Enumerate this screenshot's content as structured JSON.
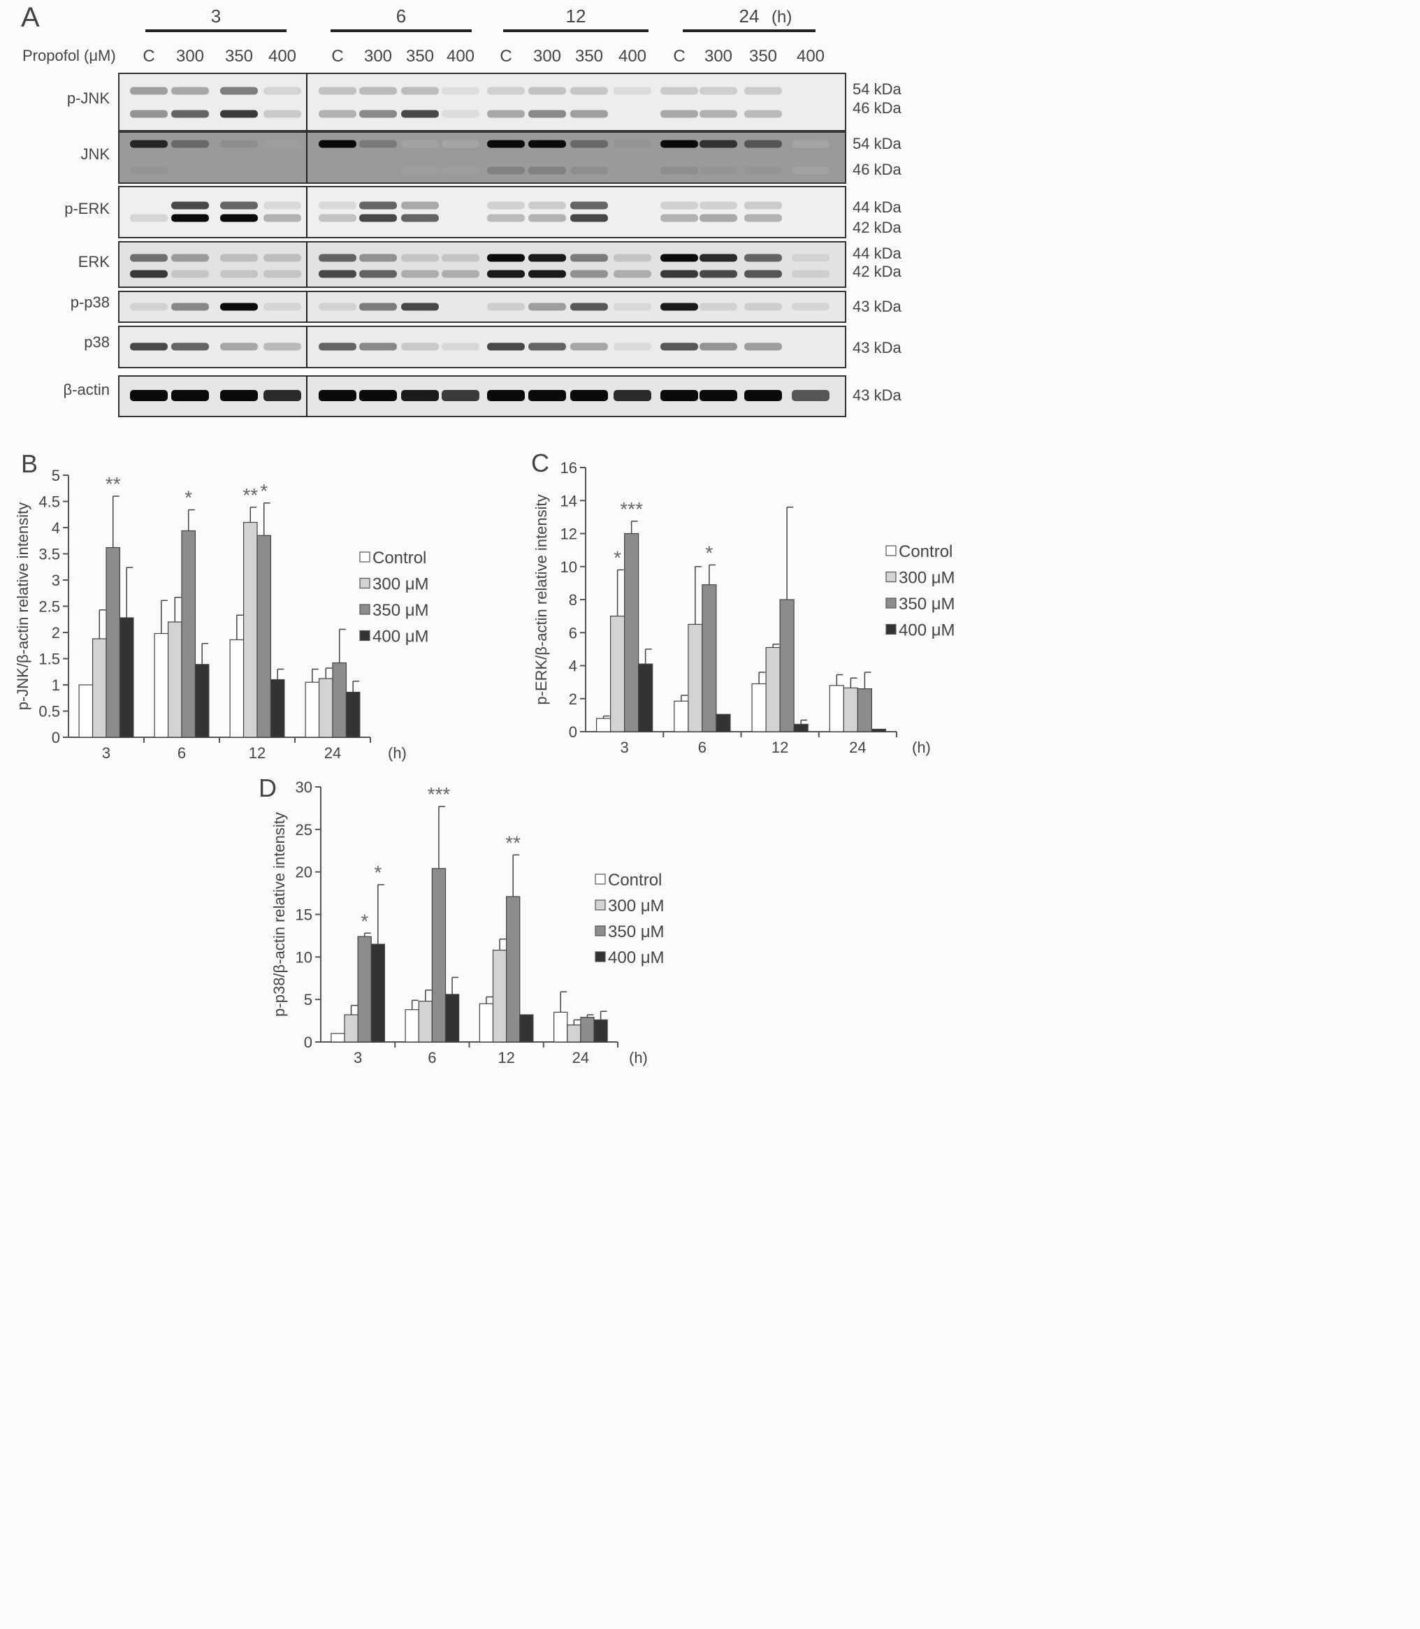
{
  "blot": {
    "panel_label": "A",
    "time_unit": "(h)",
    "timepoints": [
      "3",
      "6",
      "12",
      "24"
    ],
    "treatment_label": "Propofol (μM)",
    "lanes": [
      "C",
      "300",
      "350",
      "400"
    ],
    "rows": [
      {
        "name": "p-JNK",
        "sizes": [
          "54 kDa",
          "46 kDa"
        ],
        "bands": [
          [
            [
              0.45,
              0.4,
              0.6,
              0.12
            ],
            [
              0.25,
              0.3,
              0.28,
              0.02
            ],
            [
              0.15,
              0.25,
              0.22,
              0.05
            ],
            [
              0.2,
              0.16,
              0.18,
              0
            ]
          ],
          [
            [
              0.5,
              0.7,
              0.85,
              0.2
            ],
            [
              0.35,
              0.55,
              0.8,
              0.04
            ],
            [
              0.4,
              0.55,
              0.45,
              0
            ],
            [
              0.4,
              0.35,
              0.3,
              0
            ]
          ]
        ]
      },
      {
        "name": "JNK",
        "sizes": [
          "54 kDa",
          "46 kDa"
        ],
        "bands": [
          [
            [
              0.9,
              0.6,
              0.35,
              0.2
            ],
            [
              1,
              0.5,
              0.15,
              0.1
            ],
            [
              1,
              1,
              0.6,
              0.3
            ],
            [
              1,
              0.85,
              0.7,
              0.1
            ]
          ],
          [
            [
              0.3,
              0.25,
              0.25,
              0.25
            ],
            [
              0.25,
              0.25,
              0.2,
              0.2
            ],
            [
              0.45,
              0.45,
              0.35,
              0.25
            ],
            [
              0.35,
              0.3,
              0.3,
              0.15
            ]
          ]
        ]
      },
      {
        "name": "p-ERK",
        "sizes": [
          "44 kDa",
          "42 kDa"
        ],
        "bands": [
          [
            [
              0,
              0.8,
              0.7,
              0.08
            ],
            [
              0.08,
              0.7,
              0.4,
              0
            ],
            [
              0.15,
              0.2,
              0.7,
              0
            ],
            [
              0.15,
              0.15,
              0.2,
              0
            ]
          ],
          [
            [
              0.12,
              1,
              1,
              0.35
            ],
            [
              0.25,
              0.8,
              0.7,
              0
            ],
            [
              0.3,
              0.35,
              0.8,
              0
            ],
            [
              0.35,
              0.4,
              0.35,
              0
            ]
          ]
        ]
      },
      {
        "name": "ERK",
        "sizes": [
          "44 kDa",
          "42 kDa"
        ],
        "bands": [
          [
            [
              0.65,
              0.45,
              0.25,
              0.25
            ],
            [
              0.7,
              0.5,
              0.2,
              0.2
            ],
            [
              1,
              0.95,
              0.6,
              0.2
            ],
            [
              1,
              0.9,
              0.7,
              0.08
            ]
          ],
          [
            [
              0.85,
              0.2,
              0.2,
              0.2
            ],
            [
              0.8,
              0.7,
              0.35,
              0.35
            ],
            [
              0.95,
              0.95,
              0.5,
              0.35
            ],
            [
              0.85,
              0.8,
              0.75,
              0.1
            ]
          ]
        ]
      },
      {
        "name": "p-p38",
        "sizes": [
          "43 kDa"
        ],
        "bands": [
          [
            [
              0.1,
              0.55,
              1,
              0.08
            ],
            [
              0.1,
              0.6,
              0.8,
              0
            ],
            [
              0.15,
              0.45,
              0.75,
              0.05
            ],
            [
              0.95,
              0.12,
              0.15,
              0.08
            ]
          ]
        ]
      },
      {
        "name": "p38",
        "sizes": [
          "43 kDa"
        ],
        "bands": [
          [
            [
              0.8,
              0.7,
              0.4,
              0.3
            ],
            [
              0.7,
              0.55,
              0.2,
              0.08
            ],
            [
              0.8,
              0.7,
              0.4,
              0.05
            ],
            [
              0.75,
              0.5,
              0.45,
              0
            ]
          ]
        ]
      },
      {
        "name": "β-actin",
        "sizes": [
          "43 kDa"
        ],
        "bands": [
          [
            [
              1,
              1,
              1,
              0.9
            ],
            [
              1,
              1,
              0.95,
              0.85
            ],
            [
              1,
              1,
              1,
              0.9
            ],
            [
              1,
              1,
              1,
              0.75
            ]
          ]
        ]
      }
    ]
  },
  "chart_data": [
    {
      "panel": "B",
      "type": "bar",
      "categories": [
        "3",
        "6",
        "12",
        "24"
      ],
      "xunit": "(h)",
      "ylabel": "p-JNK/β-actin relative intensity",
      "ylim": [
        0,
        5
      ],
      "yticks": [
        "0",
        "0.5",
        "1",
        "1.5",
        "2",
        "2.5",
        "3",
        "3.5",
        "4",
        "4.5",
        "5"
      ],
      "series": [
        {
          "name": "Control",
          "color": "#ffffff",
          "values": [
            1.0,
            1.98,
            1.86,
            1.05
          ],
          "errors": [
            0,
            0.63,
            0.47,
            0.25
          ]
        },
        {
          "name": "300 μM",
          "color": "#d3d3d3",
          "values": [
            1.88,
            2.2,
            4.1,
            1.12
          ],
          "errors": [
            0.55,
            0.47,
            0.29,
            0.2
          ]
        },
        {
          "name": "350 μM",
          "color": "#8c8c8c",
          "values": [
            3.62,
            3.94,
            3.85,
            1.42
          ],
          "errors": [
            0.98,
            0.4,
            0.62,
            0.64
          ]
        },
        {
          "name": "400 μM",
          "color": "#333333",
          "values": [
            2.28,
            1.39,
            1.1,
            0.86
          ],
          "errors": [
            0.96,
            0.4,
            0.2,
            0.21
          ]
        }
      ],
      "annotations": [
        {
          "category": "3",
          "series": 2,
          "text": "**"
        },
        {
          "category": "6",
          "series": 2,
          "text": "*"
        },
        {
          "category": "12",
          "series": 1,
          "text": "**"
        },
        {
          "category": "12",
          "series": 2,
          "text": "*"
        }
      ],
      "legend": "right"
    },
    {
      "panel": "C",
      "type": "bar",
      "categories": [
        "3",
        "6",
        "12",
        "24"
      ],
      "xunit": "(h)",
      "ylabel": "p-ERK/β-actin relative intensity",
      "ylim": [
        0,
        16
      ],
      "yticks": [
        "0",
        "2",
        "4",
        "6",
        "8",
        "10",
        "12",
        "14",
        "16"
      ],
      "series": [
        {
          "name": "Control",
          "color": "#ffffff",
          "values": [
            0.8,
            1.85,
            2.9,
            2.8
          ],
          "errors": [
            0.15,
            0.35,
            0.7,
            0.65
          ]
        },
        {
          "name": "300 μM",
          "color": "#d3d3d3",
          "values": [
            7.0,
            6.5,
            5.1,
            2.65
          ],
          "errors": [
            2.8,
            3.5,
            0.2,
            0.6
          ]
        },
        {
          "name": "350 μM",
          "color": "#8c8c8c",
          "values": [
            12.0,
            8.9,
            8.0,
            2.6
          ],
          "errors": [
            0.75,
            1.2,
            5.6,
            1.0
          ]
        },
        {
          "name": "400 μM",
          "color": "#333333",
          "values": [
            4.1,
            1.05,
            0.45,
            0.15
          ],
          "errors": [
            0.9,
            0,
            0.25,
            0
          ]
        }
      ],
      "annotations": [
        {
          "category": "3",
          "series": 1,
          "text": "*"
        },
        {
          "category": "3",
          "series": 2,
          "text": "***"
        },
        {
          "category": "6",
          "series": 2,
          "text": "*"
        }
      ],
      "legend": "right"
    },
    {
      "panel": "D",
      "type": "bar",
      "categories": [
        "3",
        "6",
        "12",
        "24"
      ],
      "xunit": "(h)",
      "ylabel": "p-p38/β-actin relative intensity",
      "ylim": [
        0,
        30
      ],
      "yticks": [
        "0",
        "5",
        "10",
        "15",
        "20",
        "25",
        "30"
      ],
      "series": [
        {
          "name": "Control",
          "color": "#ffffff",
          "values": [
            1.0,
            3.8,
            4.5,
            3.5
          ],
          "errors": [
            0,
            1.1,
            0.8,
            2.4
          ]
        },
        {
          "name": "300 μM",
          "color": "#d3d3d3",
          "values": [
            3.2,
            4.8,
            10.8,
            2.0
          ],
          "errors": [
            1.1,
            1.3,
            1.3,
            0.6
          ]
        },
        {
          "name": "350 μM",
          "color": "#8c8c8c",
          "values": [
            12.4,
            20.4,
            17.1,
            2.9
          ],
          "errors": [
            0.4,
            7.3,
            4.9,
            0.3
          ]
        },
        {
          "name": "400 μM",
          "color": "#333333",
          "values": [
            11.5,
            5.6,
            3.2,
            2.6
          ],
          "errors": [
            7.0,
            2.0,
            0,
            1.0
          ]
        }
      ],
      "annotations": [
        {
          "category": "3",
          "series": 2,
          "text": "*"
        },
        {
          "category": "3",
          "series": 3,
          "text": "*"
        },
        {
          "category": "6",
          "series": 2,
          "text": "***"
        },
        {
          "category": "12",
          "series": 2,
          "text": "**"
        }
      ],
      "legend": "right"
    }
  ]
}
